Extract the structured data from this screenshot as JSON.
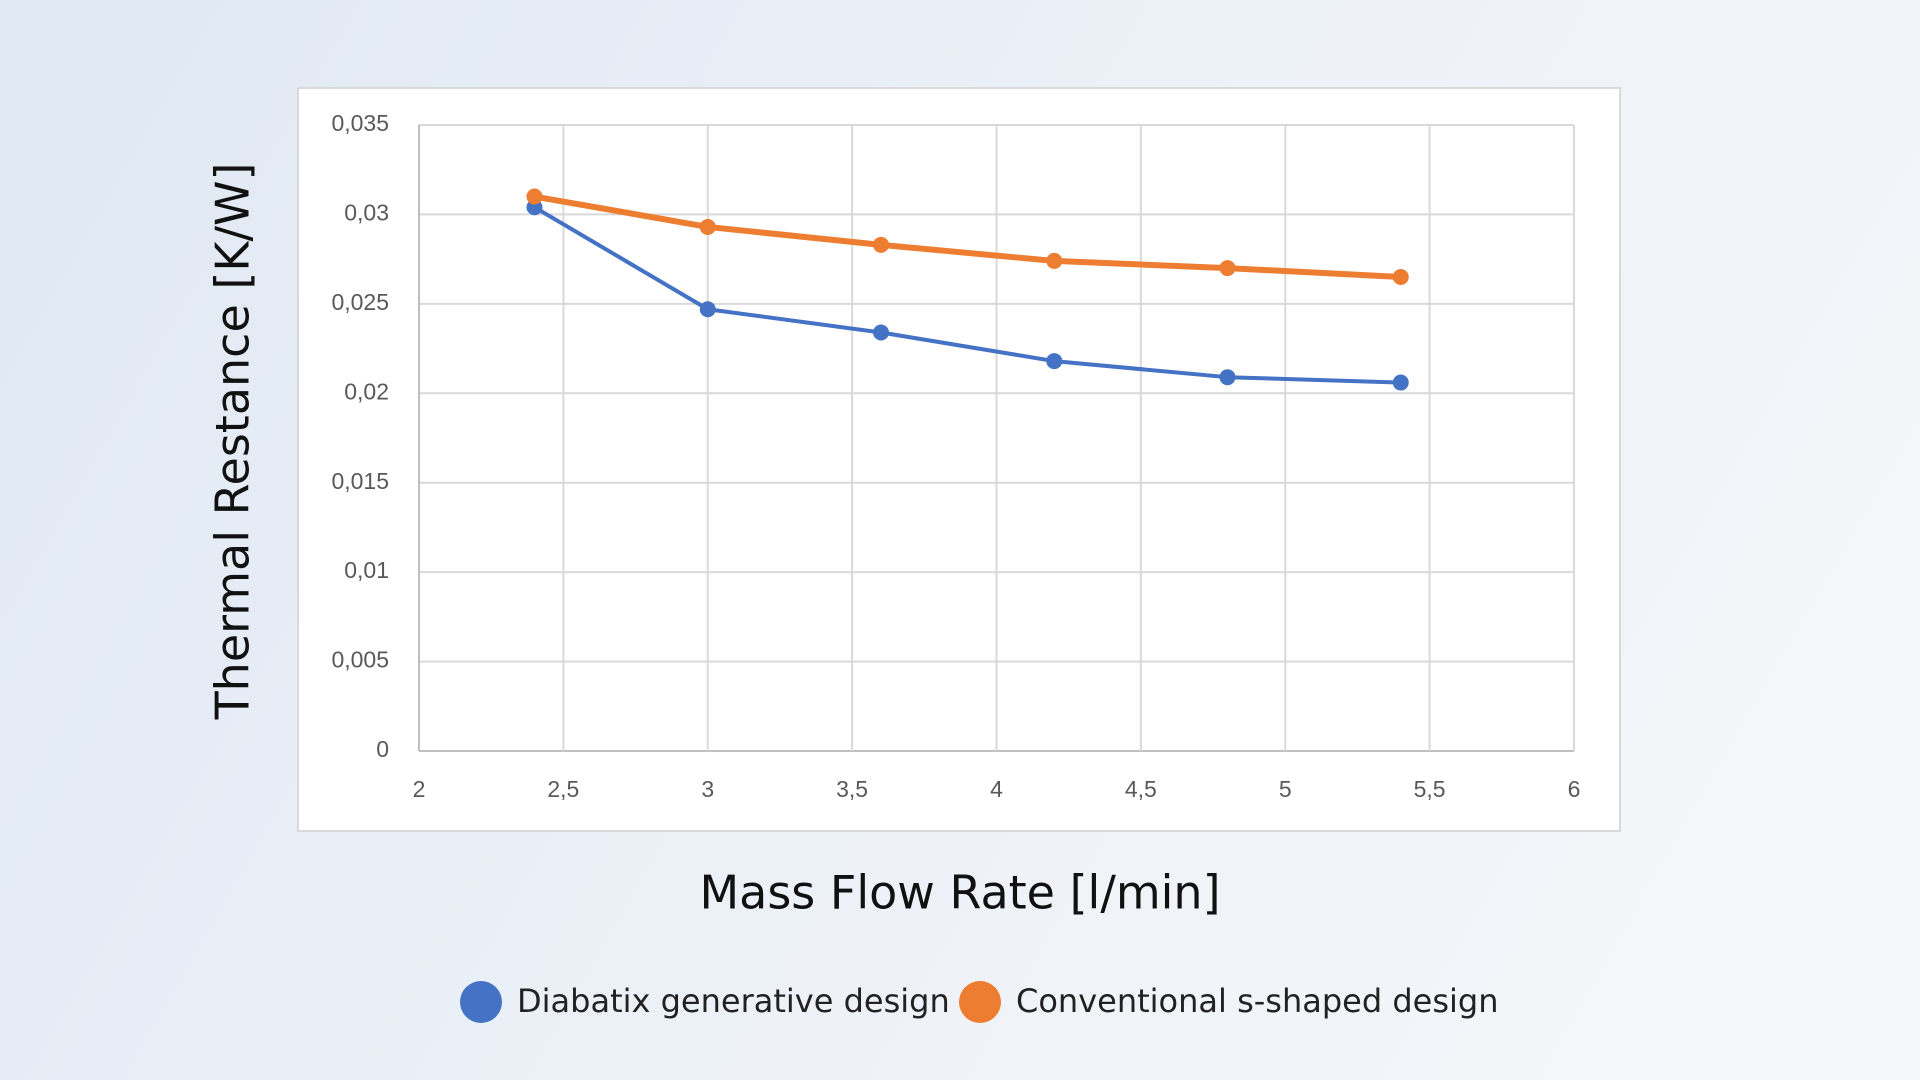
{
  "chart_data": {
    "type": "line",
    "x_label": "Mass Flow Rate [l/min]",
    "y_label": "Thermal Restance [K/W]",
    "x": [
      2.4,
      3,
      3.6,
      4.2,
      4.8,
      5.4
    ],
    "series": [
      {
        "name": "Diabatix generative design",
        "color": "#4472c4",
        "values": [
          0.0304,
          0.0247,
          0.0234,
          0.0218,
          0.0209,
          0.0206
        ]
      },
      {
        "name": "Conventional s-shaped design",
        "color": "#ed7d31",
        "values": [
          0.031,
          0.0293,
          0.0283,
          0.0274,
          0.027,
          0.0265
        ]
      }
    ],
    "xlim": [
      2,
      6
    ],
    "xticks": [
      2,
      {
        "value": 2.5,
        "label": "2,5"
      },
      3,
      {
        "value": 3.5,
        "label": "3,5"
      },
      4,
      {
        "value": 4.5,
        "label": "4,5"
      },
      5,
      {
        "value": 5.5,
        "label": "5,5"
      },
      6
    ],
    "ylim": [
      0,
      0.035
    ],
    "yticks": [
      0,
      {
        "value": 0.005,
        "label": "0,005"
      },
      {
        "value": 0.01,
        "label": "0,01"
      },
      {
        "value": 0.015,
        "label": "0,015"
      },
      {
        "value": 0.02,
        "label": "0,02"
      },
      {
        "value": 0.025,
        "label": "0,025"
      },
      {
        "value": 0.03,
        "label": "0,03"
      },
      {
        "value": 0.035,
        "label": "0,035"
      }
    ],
    "grid": true,
    "legend": "bottom"
  }
}
